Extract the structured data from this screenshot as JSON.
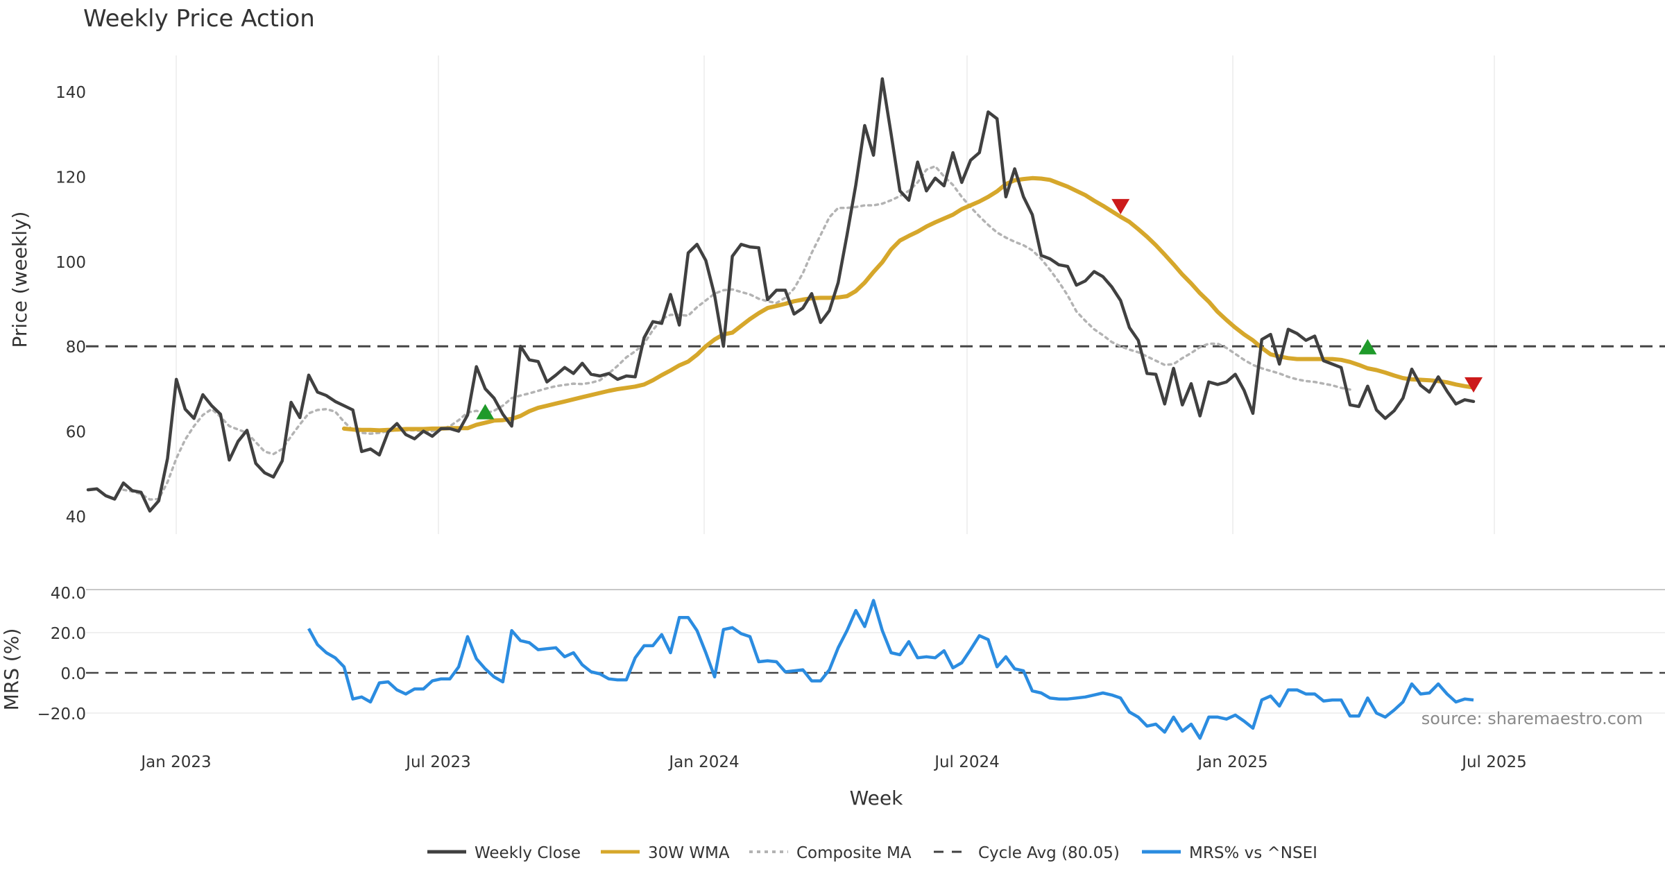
{
  "chart_data": {
    "type": "line",
    "title": "Weekly Price Action",
    "xlabel": "Week",
    "x_ticks": [
      "Jan 2023",
      "Jul 2023",
      "Jan 2024",
      "Jul 2024",
      "Jan 2025",
      "Jul 2025"
    ],
    "source": "source: sharemaestro.com",
    "panels": [
      {
        "name": "price",
        "ylabel": "Price (weekly)",
        "ylim": [
          38,
          148
        ],
        "y_ticks": [
          "40",
          "60",
          "80",
          "100",
          "120",
          "140"
        ],
        "y_tick_values": [
          40,
          60,
          80,
          100,
          120,
          140
        ],
        "reference_line": {
          "label": "Cycle Avg (80.05)",
          "value": 80.05
        },
        "series": [
          {
            "name": "Weekly Close",
            "color": "#404040",
            "style": "solid",
            "values": [
              46.2,
              46.4,
              44.8,
              44.0,
              47.8,
              46.0,
              45.6,
              41.2,
              43.6,
              53.6,
              72.2,
              65.2,
              63.0,
              68.6,
              66.0,
              64.0,
              53.2,
              57.6,
              60.2,
              52.4,
              50.2,
              49.2,
              53.0,
              66.8,
              63.2,
              73.2,
              69.2,
              68.4,
              67.0,
              66.0,
              65.0,
              55.2,
              55.8,
              54.4,
              59.8,
              61.8,
              59.2,
              58.2,
              60.0,
              58.8,
              60.6,
              60.6,
              60.0,
              63.8,
              75.2,
              70.0,
              67.8,
              64.0,
              61.2,
              80.0,
              76.8,
              76.4,
              71.6,
              73.2,
              75.0,
              73.6,
              76.0,
              73.4,
              73.0,
              73.6,
              72.2,
              73.0,
              72.8,
              82.0,
              85.8,
              85.4,
              92.2,
              85.0,
              102.0,
              104.0,
              100.2,
              92.0,
              80.0,
              101.2,
              104.0,
              103.4,
              103.2,
              91.0,
              93.2,
              93.2,
              87.6,
              89.0,
              92.4,
              85.6,
              88.4,
              95.0,
              106.2,
              118.0,
              132.0,
              125.0,
              143.0,
              130.0,
              116.6,
              114.4,
              123.4,
              116.6,
              119.6,
              117.8,
              125.6,
              118.6,
              123.8,
              125.6,
              135.2,
              133.6,
              115.2,
              121.8,
              115.2,
              111.0,
              101.4,
              100.6,
              99.2,
              98.8,
              94.4,
              95.4,
              97.6,
              96.4,
              94.0,
              90.8,
              84.4,
              81.4,
              73.6,
              73.4,
              66.4,
              74.8,
              66.2,
              71.2,
              63.6,
              71.6,
              71.0,
              71.6,
              73.4,
              69.6,
              64.2,
              81.6,
              82.8,
              75.8,
              84.0,
              83.0,
              81.4,
              82.4,
              76.6,
              75.8,
              75.0,
              66.2,
              65.8,
              70.6,
              65.0,
              63.0,
              64.8,
              67.8,
              74.6,
              70.8,
              69.2,
              72.8,
              69.4,
              66.4,
              67.4,
              67.0
            ]
          },
          {
            "name": "30W WMA",
            "color": "#d6a72b",
            "style": "solid",
            "start_index": 29,
            "values": [
              60.6,
              60.4,
              60.3,
              60.3,
              60.2,
              60.3,
              60.4,
              60.5,
              60.5,
              60.5,
              60.6,
              60.6,
              60.7,
              60.7,
              60.7,
              61.5,
              62.0,
              62.5,
              62.6,
              62.9,
              63.6,
              64.7,
              65.5,
              66.0,
              66.5,
              67.0,
              67.5,
              68.0,
              68.5,
              69.0,
              69.5,
              69.9,
              70.2,
              70.5,
              71.0,
              72.0,
              73.2,
              74.3,
              75.5,
              76.4,
              78.0,
              80.0,
              81.6,
              82.8,
              83.2,
              84.8,
              86.4,
              87.8,
              89.0,
              89.5,
              90.0,
              90.6,
              91.0,
              91.3,
              91.4,
              91.4,
              91.5,
              91.8,
              93.0,
              95.0,
              97.5,
              99.8,
              102.8,
              104.9,
              106.0,
              107.0,
              108.2,
              109.2,
              110.1,
              111.0,
              112.3,
              113.2,
              114.1,
              115.2,
              116.5,
              118.2,
              119.1,
              119.4,
              119.6,
              119.5,
              119.2,
              118.4,
              117.6,
              116.6,
              115.6,
              114.3,
              113.1,
              111.8,
              110.5,
              109.3,
              107.6,
              105.8,
              103.8,
              101.6,
              99.3,
              96.9,
              94.8,
              92.5,
              90.5,
              88.1,
              86.2,
              84.4,
              82.8,
              81.4,
              79.6,
              78.1,
              77.6,
              77.2,
              77.0,
              77.0,
              77.0,
              77.0,
              77.0,
              76.8,
              76.3,
              75.6,
              74.8,
              74.4,
              73.8,
              73.1,
              72.5,
              72.2,
              72.1,
              72.0,
              71.8,
              71.5,
              71.0,
              70.6,
              70.3
            ]
          },
          {
            "name": "Composite MA",
            "color": "#b3b3b3",
            "style": "dotted",
            "start_index": 4,
            "values": [
              46.2,
              45.8,
              45.2,
              43.9,
              44.0,
              48.0,
              53.6,
              58.0,
              61.2,
              63.8,
              65.2,
              63.4,
              61.2,
              60.4,
              59.6,
              57.4,
              55.2,
              54.6,
              55.8,
              58.8,
              61.6,
              64.2,
              65.0,
              65.2,
              64.6,
              62.2,
              60.2,
              59.6,
              59.4,
              59.6,
              60.0,
              60.2,
              60.2,
              60.2,
              60.0,
              60.0,
              60.4,
              61.2,
              62.6,
              64.4,
              64.8,
              64.2,
              64.8,
              66.0,
              67.8,
              68.4,
              68.9,
              69.5,
              70.1,
              70.6,
              70.9,
              71.2,
              71.1,
              71.4,
              72.0,
              73.6,
              75.4,
              77.4,
              78.8,
              80.6,
              83.8,
              86.4,
              87.4,
              87.4,
              87.2,
              89.2,
              90.8,
              92.4,
              93.2,
              93.4,
              92.8,
              92.2,
              91.2,
              90.6,
              90.2,
              91.4,
              93.6,
              97.2,
              102.0,
              106.2,
              110.4,
              112.6,
              112.6,
              112.8,
              113.2,
              113.2,
              113.6,
              114.4,
              115.4,
              116.6,
              118.6,
              121.6,
              122.4,
              120.0,
              118.0,
              115.2,
              112.8,
              110.6,
              108.6,
              106.8,
              105.6,
              104.6,
              103.8,
              102.6,
              100.6,
              98.0,
              95.2,
              92.0,
              88.2,
              86.0,
              84.0,
              82.6,
              81.0,
              80.0,
              79.2,
              78.6,
              77.6,
              76.6,
              75.6,
              75.8,
              77.2,
              78.4,
              79.8,
              80.6,
              80.6,
              79.6,
              78.2,
              76.8,
              75.6,
              74.8,
              74.2,
              73.6,
              72.8,
              72.2,
              71.8,
              71.6,
              71.2,
              70.8,
              70.2,
              69.8
            ]
          }
        ],
        "markers": [
          {
            "type": "buy",
            "color": "#1f9a2a",
            "x_index": 45,
            "value": 64.5
          },
          {
            "type": "sell",
            "color": "#cc1a1a",
            "x_index": 117,
            "value": 113.0
          },
          {
            "type": "buy",
            "color": "#1f9a2a",
            "x_index": 145,
            "value": 79.8
          },
          {
            "type": "sell",
            "color": "#cc1a1a",
            "x_index": 157,
            "value": 71.0
          }
        ]
      },
      {
        "name": "mrs",
        "ylabel": "MRS (%)",
        "ylim": [
          -37,
          43
        ],
        "y_ticks": [
          "40.0",
          "20.0",
          "0.0",
          "−20.0"
        ],
        "y_tick_values": [
          40,
          20,
          0,
          -20
        ],
        "reference_line": {
          "label": "",
          "value": 0
        },
        "series": [
          {
            "name": "MRS% vs ^NSEI",
            "color": "#2b8ce0",
            "style": "solid",
            "start_index": 25,
            "values": [
              22,
              14,
              10,
              7.5,
              3,
              -13,
              -12,
              -14.5,
              -5,
              -4.5,
              -8.5,
              -10.5,
              -8,
              -8,
              -4,
              -3,
              -3,
              3,
              18,
              7,
              2,
              -2,
              -4.5,
              21,
              16,
              15,
              11.5,
              12,
              12.5,
              8,
              10,
              4,
              0.5,
              -0.5,
              -3,
              -3.5,
              -3.5,
              7.5,
              13.5,
              13.5,
              19,
              10,
              27.5,
              27.5,
              21,
              10,
              -2,
              21.5,
              22.5,
              19.5,
              18,
              5.5,
              6,
              5.5,
              0.5,
              1,
              1.5,
              -4,
              -4,
              1.5,
              12.5,
              21,
              31,
              23,
              36,
              21,
              10,
              9,
              15.5,
              7.5,
              8,
              7.5,
              11,
              2.5,
              5,
              11.5,
              18.5,
              16.5,
              3,
              8,
              2,
              1,
              -9,
              -10,
              -12.5,
              -13,
              -13,
              -12.5,
              -12,
              -11,
              -10,
              -11,
              -12.5,
              -19.5,
              -22,
              -26.5,
              -25.5,
              -29.5,
              -22,
              -29,
              -25.5,
              -32.5,
              -22,
              -22,
              -23,
              -21,
              -24,
              -27.5,
              -13.5,
              -11.5,
              -16.5,
              -8.5,
              -8.5,
              -10.5,
              -10.5,
              -14,
              -13.5,
              -13.5,
              -21.5,
              -21.5,
              -12.5,
              -20,
              -22,
              -18.5,
              -14.5,
              -5.5,
              -10.5,
              -10,
              -5.5,
              -10.5,
              -14.5,
              -13,
              -13.5
            ]
          }
        ]
      }
    ],
    "legend": [
      {
        "label": "Weekly Close",
        "color": "#404040",
        "style": "solid"
      },
      {
        "label": "30W WMA",
        "color": "#d6a72b",
        "style": "solid"
      },
      {
        "label": "Composite MA",
        "color": "#b3b3b3",
        "style": "dotted"
      },
      {
        "label": "Cycle Avg (80.05)",
        "color": "#404040",
        "style": "dashed"
      },
      {
        "label": "MRS% vs ^NSEI",
        "color": "#2b8ce0",
        "style": "solid"
      }
    ]
  }
}
